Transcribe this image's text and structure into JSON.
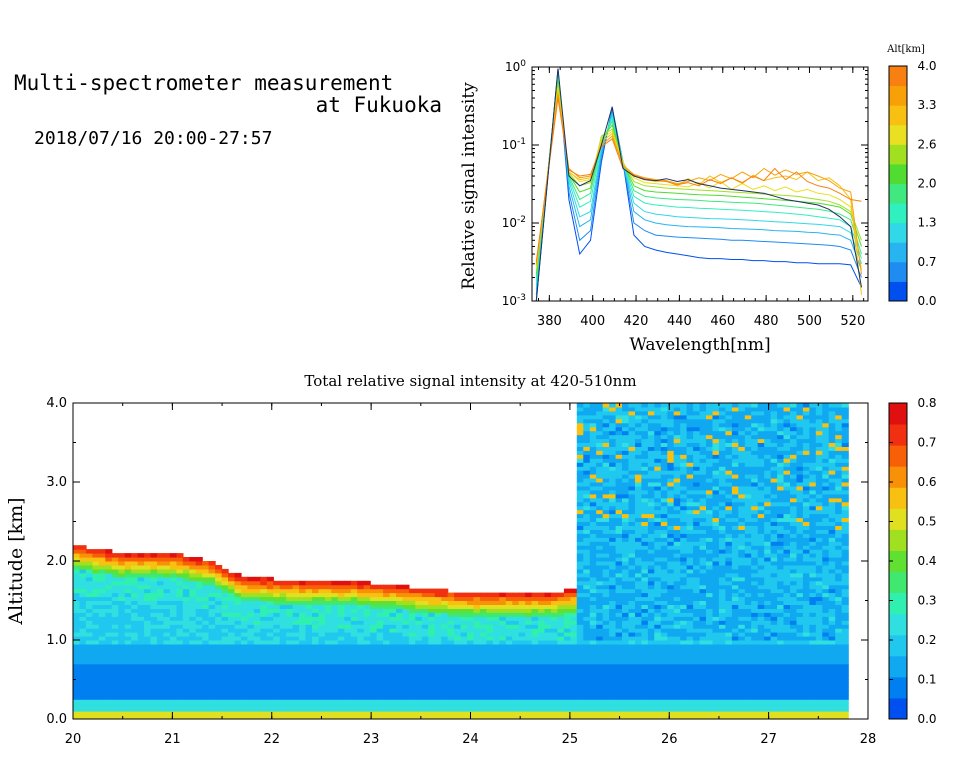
{
  "page": {
    "title_line1": "Multi-spectrometer measurement",
    "title_line2": "at Fukuoka",
    "subtitle": "2018/07/16 20:00-27:57"
  },
  "chart_data": [
    {
      "type": "line",
      "name": "spectrum",
      "xlabel": "Wavelength[nm]",
      "ylabel": "Relative signal intensity",
      "xlim": [
        372,
        527
      ],
      "ylim": [
        0.001,
        1
      ],
      "yscale": "log",
      "xticks": [
        380,
        400,
        420,
        440,
        460,
        480,
        500,
        520
      ],
      "yticks": [
        {
          "value": 1,
          "label": "10^0"
        },
        {
          "value": 0.1,
          "label": "10^-1"
        },
        {
          "value": 0.01,
          "label": "10^-2"
        },
        {
          "value": 0.001,
          "label": "10^-3"
        }
      ],
      "colorbar": {
        "label": "Alt[km]",
        "ticks": [
          "0.0",
          "0.7",
          "1.3",
          "2.0",
          "2.6",
          "3.3",
          "4.0"
        ],
        "colors": [
          "#0050f0",
          "#1e8cf0",
          "#28b4f0",
          "#30d8e8",
          "#30f0c0",
          "#40e880",
          "#50dc30",
          "#a0e020",
          "#e8e020",
          "#f8c010",
          "#f8a008",
          "#f88010"
        ]
      },
      "x": [
        374,
        384,
        389,
        394,
        399,
        404,
        409,
        414,
        419,
        424,
        429,
        434,
        439,
        444,
        449,
        454,
        459,
        464,
        469,
        474,
        479,
        484,
        489,
        494,
        499,
        504,
        509,
        514,
        519,
        524
      ],
      "series": [
        {
          "color": "#0050f0",
          "values": [
            0.001,
            0.95,
            0.02,
            0.004,
            0.006,
            0.06,
            0.3,
            0.06,
            0.007,
            0.005,
            0.0045,
            0.0042,
            0.004,
            0.0038,
            0.0036,
            0.0035,
            0.0035,
            0.0034,
            0.0034,
            0.0033,
            0.0033,
            0.0032,
            0.0032,
            0.0031,
            0.0031,
            0.003,
            0.003,
            0.003,
            0.0029,
            0.0015
          ]
        },
        {
          "color": "#1e8cf0",
          "values": [
            0.0012,
            0.9,
            0.025,
            0.006,
            0.008,
            0.07,
            0.28,
            0.06,
            0.01,
            0.008,
            0.007,
            0.0068,
            0.0066,
            0.0065,
            0.0064,
            0.0063,
            0.0062,
            0.006,
            0.006,
            0.0059,
            0.0058,
            0.0057,
            0.0056,
            0.0055,
            0.0054,
            0.0053,
            0.0052,
            0.005,
            0.0045,
            0.002
          ]
        },
        {
          "color": "#28b4f0",
          "values": [
            0.0014,
            0.85,
            0.03,
            0.009,
            0.011,
            0.08,
            0.26,
            0.06,
            0.014,
            0.011,
            0.01,
            0.0095,
            0.0092,
            0.009,
            0.0089,
            0.0088,
            0.0087,
            0.0085,
            0.0084,
            0.0083,
            0.0082,
            0.008,
            0.0079,
            0.0078,
            0.0076,
            0.0075,
            0.0072,
            0.007,
            0.006,
            0.0025
          ]
        },
        {
          "color": "#30d8e8",
          "values": [
            0.0016,
            0.8,
            0.035,
            0.012,
            0.014,
            0.09,
            0.24,
            0.06,
            0.018,
            0.014,
            0.013,
            0.0125,
            0.012,
            0.0118,
            0.0116,
            0.0114,
            0.0113,
            0.0112,
            0.011,
            0.0108,
            0.0106,
            0.0104,
            0.0102,
            0.01,
            0.0098,
            0.0096,
            0.0093,
            0.009,
            0.0075,
            0.003
          ]
        },
        {
          "color": "#30f0c0",
          "values": [
            0.0018,
            0.75,
            0.038,
            0.016,
            0.019,
            0.1,
            0.22,
            0.06,
            0.022,
            0.018,
            0.017,
            0.0165,
            0.016,
            0.0158,
            0.0155,
            0.0153,
            0.015,
            0.0148,
            0.0146,
            0.0143,
            0.014,
            0.0137,
            0.0134,
            0.013,
            0.0126,
            0.012,
            0.0115,
            0.011,
            0.009,
            0.0035
          ]
        },
        {
          "color": "#40e880",
          "values": [
            0.002,
            0.7,
            0.04,
            0.02,
            0.024,
            0.11,
            0.2,
            0.06,
            0.026,
            0.022,
            0.021,
            0.0205,
            0.02,
            0.0198,
            0.0195,
            0.019,
            0.0188,
            0.0185,
            0.0182,
            0.018,
            0.0175,
            0.017,
            0.0165,
            0.016,
            0.0155,
            0.015,
            0.0142,
            0.013,
            0.011,
            0.004
          ]
        },
        {
          "color": "#50dc30",
          "values": [
            0.0022,
            0.65,
            0.042,
            0.025,
            0.028,
            0.12,
            0.18,
            0.06,
            0.03,
            0.026,
            0.025,
            0.0245,
            0.024,
            0.0235,
            0.023,
            0.0228,
            0.0225,
            0.022,
            0.0215,
            0.021,
            0.0205,
            0.02,
            0.0195,
            0.019,
            0.0185,
            0.018,
            0.017,
            0.016,
            0.013,
            0.005
          ]
        },
        {
          "color": "#a0e020",
          "values": [
            0.0024,
            0.6,
            0.044,
            0.03,
            0.033,
            0.13,
            0.16,
            0.06,
            0.034,
            0.03,
            0.029,
            0.028,
            0.0275,
            0.027,
            0.0265,
            0.026,
            0.0255,
            0.025,
            0.0245,
            0.024,
            0.0235,
            0.023,
            0.0225,
            0.022,
            0.021,
            0.02,
            0.019,
            0.017,
            0.014,
            0.006
          ]
        },
        {
          "color": "#e8e020",
          "values": [
            0.0026,
            0.55,
            0.046,
            0.034,
            0.036,
            0.12,
            0.15,
            0.058,
            0.038,
            0.033,
            0.032,
            0.031,
            0.03,
            0.029,
            0.033,
            0.028,
            0.034,
            0.027,
            0.032,
            0.027,
            0.03,
            0.026,
            0.029,
            0.025,
            0.027,
            0.024,
            0.023,
            0.02,
            0.016,
            0.0025
          ]
        },
        {
          "color": "#f8c010",
          "values": [
            0.0028,
            0.5,
            0.045,
            0.036,
            0.038,
            0.11,
            0.14,
            0.055,
            0.04,
            0.036,
            0.034,
            0.035,
            0.03,
            0.037,
            0.031,
            0.04,
            0.033,
            0.038,
            0.032,
            0.041,
            0.035,
            0.038,
            0.04,
            0.036,
            0.045,
            0.035,
            0.038,
            0.03,
            0.02,
            0.0012
          ]
        },
        {
          "color": "#f8a008",
          "values": [
            0.003,
            0.45,
            0.05,
            0.038,
            0.04,
            0.1,
            0.13,
            0.055,
            0.042,
            0.038,
            0.036,
            0.035,
            0.032,
            0.034,
            0.038,
            0.035,
            0.042,
            0.037,
            0.045,
            0.038,
            0.05,
            0.041,
            0.048,
            0.042,
            0.045,
            0.04,
            0.035,
            0.028,
            0.025,
            0.0022
          ]
        },
        {
          "color": "#f88010",
          "values": [
            0.0032,
            0.4,
            0.048,
            0.04,
            0.042,
            0.095,
            0.12,
            0.05,
            0.041,
            0.037,
            0.035,
            0.034,
            0.031,
            0.033,
            0.03,
            0.036,
            0.032,
            0.038,
            0.033,
            0.04,
            0.035,
            0.05,
            0.036,
            0.045,
            0.034,
            0.03,
            0.028,
            0.024,
            0.02,
            0.019
          ]
        },
        {
          "color": "#203060",
          "values": [
            0.001,
            0.95,
            0.04,
            0.03,
            0.035,
            0.1,
            0.31,
            0.05,
            0.04,
            0.036,
            0.035,
            0.037,
            0.034,
            0.036,
            0.032,
            0.03,
            0.028,
            0.027,
            0.026,
            0.025,
            0.024,
            0.022,
            0.02,
            0.019,
            0.018,
            0.017,
            0.015,
            0.012,
            0.009,
            0.0015
          ]
        }
      ]
    },
    {
      "type": "heatmap",
      "name": "altitude-time",
      "title": "Total relative signal intensity at 420-510nm",
      "xlabel": "",
      "ylabel": "Altitude [km]",
      "xlim": [
        20,
        28
      ],
      "ylim": [
        0,
        4
      ],
      "xticks": [
        "20",
        "21",
        "22",
        "23",
        "24",
        "25",
        "26",
        "27",
        "28"
      ],
      "yticks": [
        "0.0",
        "1.0",
        "2.0",
        "3.0",
        "4.0"
      ],
      "colorbar": {
        "ticks": [
          "0.0",
          "0.1",
          "0.2",
          "0.3",
          "0.4",
          "0.5",
          "0.6",
          "0.7",
          "0.8"
        ],
        "colors": [
          "#0050f0",
          "#0080f0",
          "#10a8f0",
          "#20c8f0",
          "#30e0e0",
          "#30f0b0",
          "#40e870",
          "#60e030",
          "#a0e020",
          "#e0e020",
          "#f8c010",
          "#f89008",
          "#f86008",
          "#f03010",
          "#e01010"
        ],
        "vmin": 0,
        "vmax": 0.8
      },
      "x_data_range": [
        20,
        27.8
      ],
      "cloud_base_km": [
        {
          "t": 20.0,
          "z": 2.2
        },
        {
          "t": 20.5,
          "z": 2.1
        },
        {
          "t": 21.0,
          "z": 2.1
        },
        {
          "t": 21.4,
          "z": 2.0
        },
        {
          "t": 21.7,
          "z": 1.8
        },
        {
          "t": 22.3,
          "z": 1.75
        },
        {
          "t": 22.8,
          "z": 1.75
        },
        {
          "t": 23.2,
          "z": 1.7
        },
        {
          "t": 23.6,
          "z": 1.65
        },
        {
          "t": 24.0,
          "z": 1.6
        },
        {
          "t": 24.8,
          "z": 1.6
        },
        {
          "t": 25.1,
          "z": 1.65
        }
      ],
      "clear_after": 25.1
    }
  ]
}
